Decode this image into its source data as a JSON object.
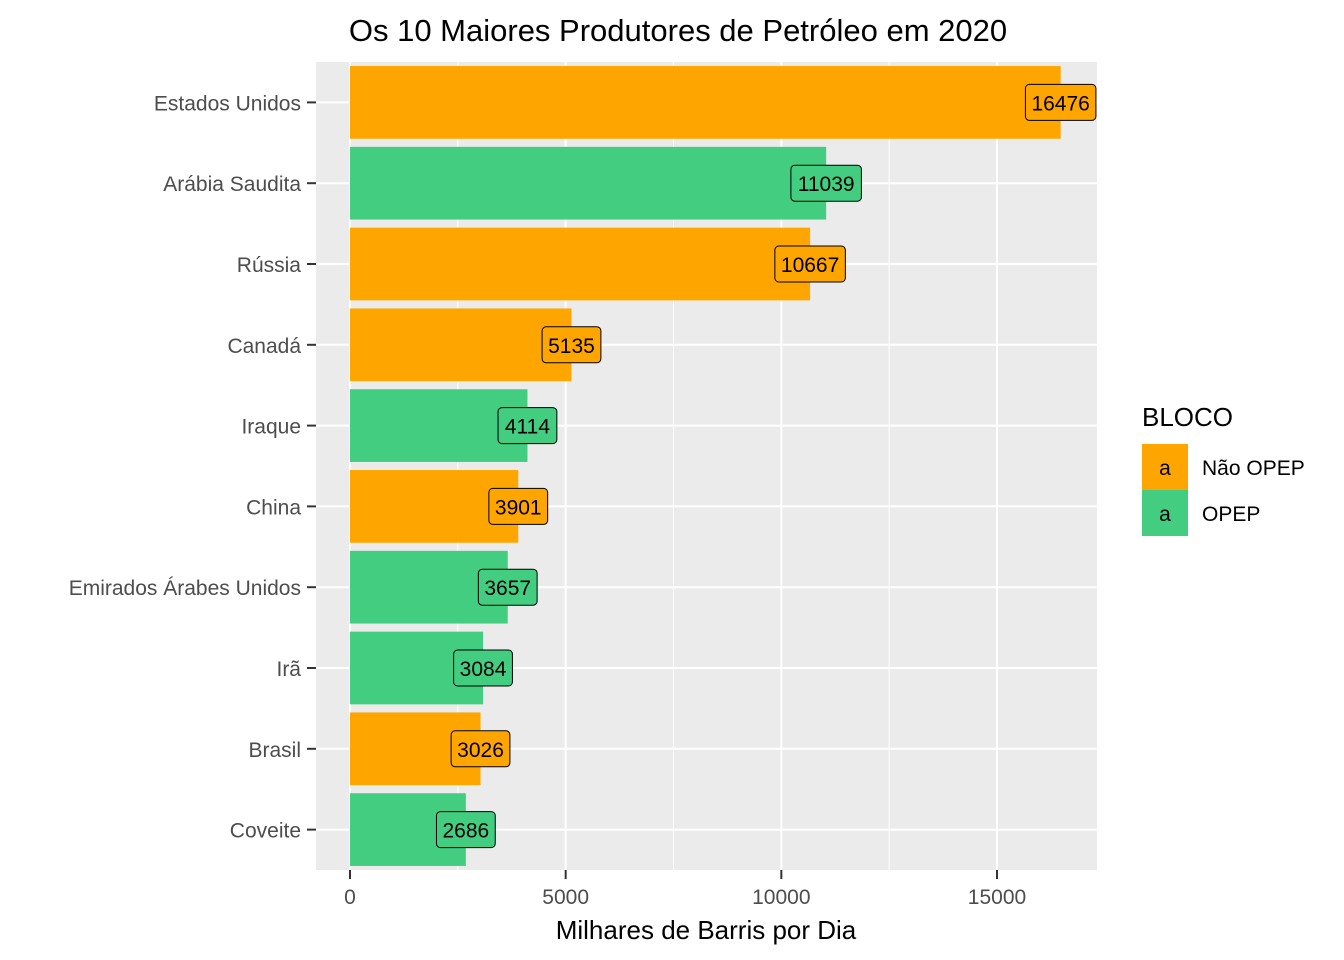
{
  "chart_data": {
    "type": "bar",
    "orientation": "horizontal",
    "title": "Os 10 Maiores Produtores de Petróleo em 2020",
    "xlabel": "Milhares de Barris por Dia",
    "ylabel": "",
    "xlim": [
      0,
      17300
    ],
    "x_ticks": [
      0,
      5000,
      10000,
      15000
    ],
    "x_tick_labels": [
      "0",
      "5000",
      "10000",
      "15000"
    ],
    "grid": true,
    "legend": {
      "title": "BLOCO",
      "position": "right",
      "key_glyph": "a",
      "entries": [
        {
          "label": "Não OPEP",
          "color": "#FFA500"
        },
        {
          "label": "OPEP",
          "color": "#43CD80"
        }
      ]
    },
    "categories": [
      "Estados Unidos",
      "Arábia Saudita",
      "Rússia",
      "Canadá",
      "Iraque",
      "China",
      "Emirados Árabes Unidos",
      "Irã",
      "Brasil",
      "Coveite"
    ],
    "values": [
      16476,
      11039,
      10667,
      5135,
      4114,
      3901,
      3657,
      3084,
      3026,
      2686
    ],
    "value_labels": [
      "16476",
      "11039",
      "10667",
      "5135",
      "4114",
      "3901",
      "3657",
      "3084",
      "3026",
      "2686"
    ],
    "groups": [
      "Não OPEP",
      "OPEP",
      "Não OPEP",
      "Não OPEP",
      "OPEP",
      "Não OPEP",
      "OPEP",
      "OPEP",
      "Não OPEP",
      "OPEP"
    ]
  }
}
